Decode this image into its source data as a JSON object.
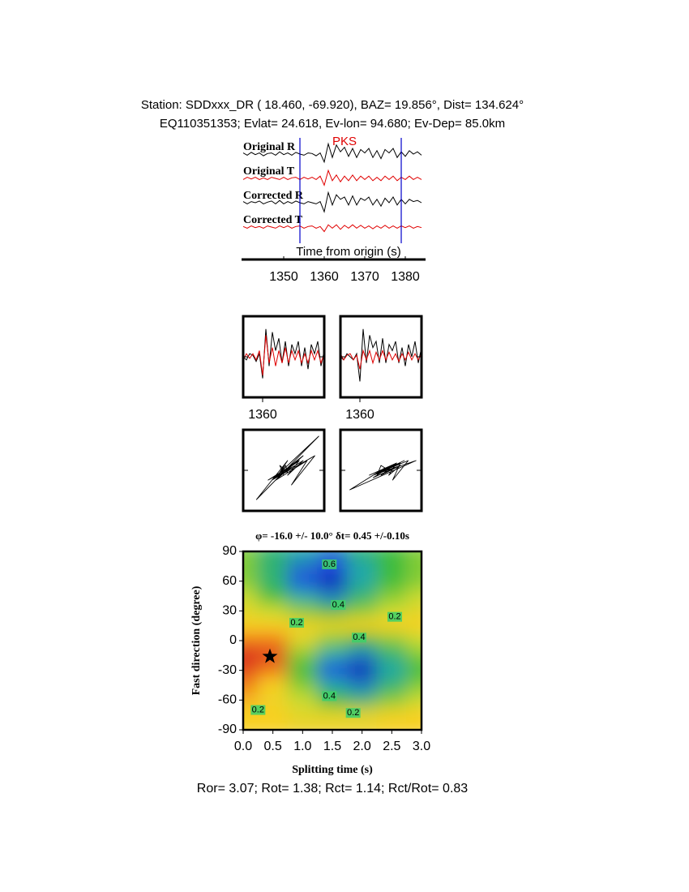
{
  "chart_data": [
    {
      "type": "line",
      "title": "Station: SDDxxx_DR (  18.460,  -69.920), BAZ=   19.856°, Dist=  134.624°",
      "subtitle": "EQ110351353; Evlat=  24.618, Ev-lon=  94.680; Ev-Dep= 85.0km",
      "xlabel": "Time from origin (s)",
      "xlim": [
        1340,
        1384
      ],
      "xticks": [
        1350,
        1360,
        1370,
        1380
      ],
      "x": [
        1340,
        1341,
        1342,
        1343,
        1344,
        1345,
        1346,
        1347,
        1348,
        1349,
        1350,
        1351,
        1352,
        1353,
        1354,
        1355,
        1356,
        1357,
        1358,
        1359,
        1360,
        1361,
        1362,
        1363,
        1364,
        1365,
        1366,
        1367,
        1368,
        1369,
        1370,
        1371,
        1372,
        1373,
        1374,
        1375,
        1376,
        1377,
        1378,
        1379,
        1380,
        1381,
        1382,
        1383,
        1384
      ],
      "series": [
        {
          "name": "Original R",
          "color": "#000000",
          "values": [
            0.1,
            -0.1,
            0.15,
            -0.05,
            0.1,
            -0.15,
            0.05,
            0.1,
            -0.1,
            0.2,
            -0.05,
            0.1,
            -0.1,
            0.15,
            0,
            -0.1,
            0.1,
            0.05,
            -0.15,
            0.1,
            -0.7,
            0.9,
            -0.3,
            0.8,
            0.2,
            0.6,
            -0.2,
            0.5,
            -0.3,
            0.4,
            0.1,
            0.5,
            -0.3,
            0.3,
            -0.4,
            0.4,
            0.1,
            0.5,
            -0.3,
            0.2,
            -0.2,
            0.3,
            0,
            0.2,
            -0.1
          ]
        },
        {
          "name": "Original T",
          "color": "#e00000",
          "values": [
            -0.1,
            0.1,
            -0.05,
            0.1,
            -0.1,
            0.05,
            -0.1,
            0.1,
            0,
            -0.1,
            0.1,
            -0.1,
            0.05,
            0.1,
            -0.1,
            0.1,
            -0.05,
            0.1,
            -0.1,
            0.2,
            -0.6,
            0.7,
            -0.2,
            0.3,
            -0.3,
            0.2,
            -0.2,
            0.3,
            -0.2,
            0.2,
            -0.1,
            0.2,
            -0.2,
            0.1,
            -0.2,
            0.2,
            -0.1,
            0.2,
            -0.2,
            0.1,
            -0.1,
            0.2,
            -0.1,
            0.1,
            -0.1
          ]
        },
        {
          "name": "Corrected R",
          "color": "#000000",
          "values": [
            0.1,
            -0.1,
            0.1,
            0,
            0.15,
            -0.1,
            0.05,
            0.15,
            -0.1,
            0.2,
            -0.1,
            0.1,
            -0.05,
            0.15,
            0,
            -0.1,
            0.1,
            0,
            -0.1,
            0.1,
            -0.8,
            0.9,
            -0.2,
            0.7,
            0.3,
            0.5,
            -0.2,
            0.6,
            -0.2,
            0.4,
            0.2,
            0.5,
            -0.2,
            0.3,
            -0.3,
            0.4,
            0,
            0.5,
            -0.2,
            0.3,
            -0.1,
            0.3,
            0.1,
            0.2,
            0
          ]
        },
        {
          "name": "Corrected T",
          "color": "#e00000",
          "values": [
            0.05,
            -0.1,
            0.1,
            -0.05,
            0.05,
            -0.1,
            0.1,
            0,
            -0.1,
            0.1,
            -0.05,
            0.1,
            -0.1,
            0.05,
            0.1,
            -0.1,
            0.05,
            0.1,
            -0.1,
            0.05,
            -0.4,
            0.2,
            -0.1,
            0.2,
            -0.2,
            0.15,
            -0.1,
            0.2,
            -0.1,
            0.15,
            -0.1,
            0.1,
            -0.15,
            0.1,
            -0.1,
            0.15,
            -0.1,
            0.1,
            -0.1,
            0.1,
            -0.05,
            0.1,
            -0.1,
            0.05,
            -0.05
          ]
        }
      ],
      "window": [
        1354,
        1379
      ],
      "window_color": "#0000cc",
      "phase_label": "PKS",
      "phase_time": 1365,
      "phase_color": "#e00000"
    },
    {
      "type": "window",
      "xlim": [
        1354,
        1379
      ],
      "xticks": [
        1360
      ]
    },
    {
      "type": "window",
      "xlim": [
        1354,
        1379
      ],
      "xticks": [
        1360
      ]
    },
    {
      "type": "particle",
      "xlim": [
        1354,
        1379
      ]
    },
    {
      "type": "particle",
      "xlim": [
        1354,
        1379
      ]
    },
    {
      "type": "contour",
      "title": "φ= -16.0 +/- 10.0° δt= 0.45 +/-0.10s",
      "xlabel": "Splitting time (s)",
      "ylabel": "Fast direction (degree)",
      "xlim": [
        0,
        3
      ],
      "ylim": [
        -90,
        90
      ],
      "xticks": [
        {
          "value": 0,
          "label": "0.0"
        },
        0.5,
        {
          "value": 1,
          "label": "1.0"
        },
        1.5,
        {
          "value": 2,
          "label": "2.0"
        },
        2.5,
        {
          "value": 3,
          "label": "3.0"
        }
      ],
      "yticks": [
        90,
        60,
        30,
        0,
        -30,
        -60,
        -90
      ],
      "x_grid": [
        0,
        0.5,
        1,
        1.5,
        2,
        2.5,
        3
      ],
      "y_grid": [
        90,
        75,
        60,
        45,
        30,
        15,
        0,
        -15,
        -30,
        -45,
        -60,
        -75,
        -90
      ],
      "z": [
        [
          0.35,
          0.45,
          0.5,
          0.55,
          0.45,
          0.4,
          0.35
        ],
        [
          0.35,
          0.45,
          0.55,
          0.6,
          0.5,
          0.4,
          0.35
        ],
        [
          0.35,
          0.45,
          0.6,
          0.65,
          0.5,
          0.4,
          0.35
        ],
        [
          0.3,
          0.4,
          0.5,
          0.55,
          0.45,
          0.35,
          0.3
        ],
        [
          0.25,
          0.3,
          0.35,
          0.4,
          0.35,
          0.3,
          0.25
        ],
        [
          0.2,
          0.2,
          0.22,
          0.22,
          0.2,
          0.2,
          0.2
        ],
        [
          0.15,
          0.15,
          0.25,
          0.35,
          0.4,
          0.35,
          0.3
        ],
        [
          0.1,
          0.12,
          0.35,
          0.5,
          0.55,
          0.45,
          0.35
        ],
        [
          0.12,
          0.15,
          0.4,
          0.6,
          0.65,
          0.5,
          0.4
        ],
        [
          0.15,
          0.2,
          0.35,
          0.5,
          0.55,
          0.45,
          0.35
        ],
        [
          0.18,
          0.22,
          0.3,
          0.4,
          0.45,
          0.35,
          0.3
        ],
        [
          0.2,
          0.2,
          0.25,
          0.25,
          0.25,
          0.22,
          0.2
        ],
        [
          0.2,
          0.2,
          0.22,
          0.22,
          0.22,
          0.2,
          0.2
        ]
      ],
      "colormap": [
        {
          "value": 0.1,
          "color": "#d8281c"
        },
        {
          "value": 0.15,
          "color": "#f07a1e"
        },
        {
          "value": 0.2,
          "color": "#f8d024"
        },
        {
          "value": 0.3,
          "color": "#c8dc30"
        },
        {
          "value": 0.4,
          "color": "#3cbc3c"
        },
        {
          "value": 0.5,
          "color": "#20a8a8"
        },
        {
          "value": 0.6,
          "color": "#2050e0"
        },
        {
          "value": 0.7,
          "color": "#000090"
        }
      ],
      "contour_labels": [
        {
          "text": "0.6",
          "x": 1.45,
          "y": 77
        },
        {
          "text": "0.4",
          "x": 1.6,
          "y": 36
        },
        {
          "text": "0.2",
          "x": 0.9,
          "y": 18
        },
        {
          "text": "0.2",
          "x": 2.55,
          "y": 24
        },
        {
          "text": "0.4",
          "x": 1.95,
          "y": 3
        },
        {
          "text": "0.4",
          "x": 1.45,
          "y": -56
        },
        {
          "text": "0.2",
          "x": 0.25,
          "y": -70
        },
        {
          "text": "0.2",
          "x": 1.85,
          "y": -73
        }
      ],
      "best": {
        "x": 0.45,
        "y": -16
      },
      "stats": "Ror= 3.07; Rot= 1.38; Rct= 1.14; Rct/Rot= 0.83"
    }
  ]
}
